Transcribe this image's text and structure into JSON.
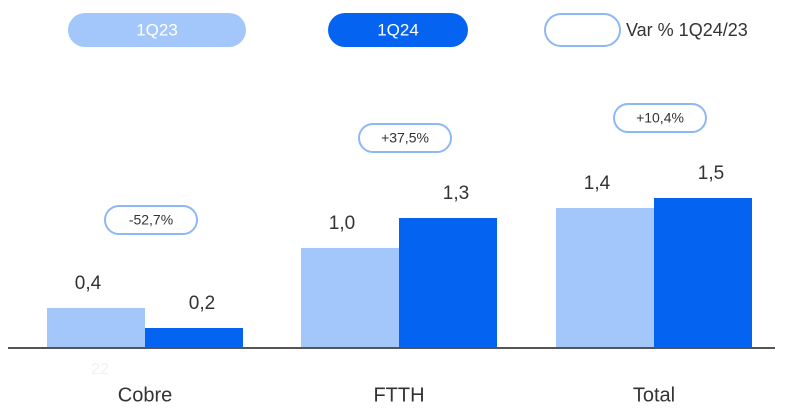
{
  "chart_data": {
    "type": "bar",
    "categories": [
      "Cobre",
      "FTTH",
      "Total"
    ],
    "series": [
      {
        "name": "1Q23",
        "color": "#a3c6fb",
        "values": [
          0.4,
          1.0,
          1.4
        ],
        "value_labels": [
          "0,4",
          "1,0",
          "1,4"
        ]
      },
      {
        "name": "1Q24",
        "color": "#0563f2",
        "values": [
          0.2,
          1.3,
          1.5
        ],
        "value_labels": [
          "0,2",
          "1,3",
          "1,5"
        ]
      }
    ],
    "variance_legend": "Var % 1Q24/23",
    "variance_labels": [
      "-52,7%",
      "+37,5%",
      "+10,4%"
    ],
    "footnote": "22"
  }
}
